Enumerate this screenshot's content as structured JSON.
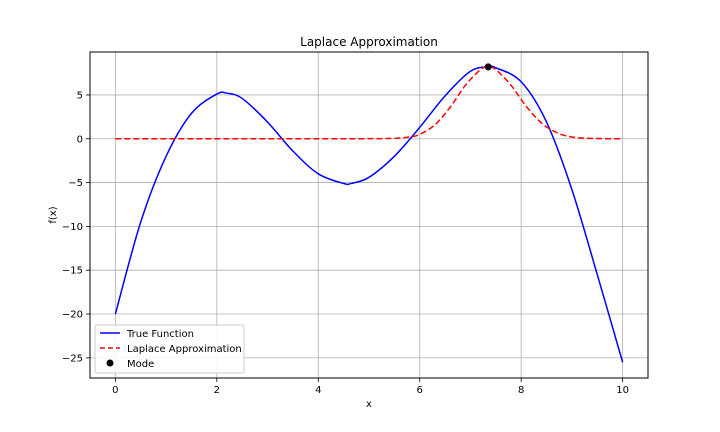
{
  "chart_data": {
    "type": "line",
    "title": "Laplace Approximation",
    "xlabel": "x",
    "ylabel": "f(x)",
    "xlim": [
      -0.5,
      10.5
    ],
    "ylim": [
      -27.3,
      9.9
    ],
    "grid": true,
    "legend_position": "bottom-left",
    "x_ticks": [
      0,
      2,
      4,
      6,
      8,
      10
    ],
    "x_tick_labels": [
      "0",
      "2",
      "4",
      "6",
      "8",
      "10"
    ],
    "y_ticks": [
      5,
      0,
      -5,
      -10,
      -15,
      -20,
      -25
    ],
    "y_tick_labels": [
      "5",
      "0",
      "−5",
      "−10",
      "−15",
      "−20",
      "−25"
    ],
    "series": [
      {
        "name": "True Function",
        "style": "solid",
        "color": "#0000ff",
        "x": [
          0,
          0.5,
          1.0,
          1.5,
          2.0,
          2.2,
          2.5,
          3.0,
          3.5,
          4.0,
          4.5,
          4.65,
          5.0,
          5.5,
          6.0,
          6.5,
          7.0,
          7.35,
          7.5,
          8.0,
          8.5,
          9.0,
          9.5,
          10.0
        ],
        "values": [
          -20.0,
          -9.5,
          -2.0,
          2.9,
          5.1,
          5.2,
          4.6,
          1.9,
          -1.4,
          -4.0,
          -5.1,
          -5.1,
          -4.4,
          -2.0,
          1.3,
          4.9,
          7.7,
          8.2,
          8.1,
          6.5,
          1.9,
          -5.8,
          -15.5,
          -25.5
        ]
      },
      {
        "name": "Laplace Approximation",
        "style": "dashed",
        "color": "#ff0000",
        "x": [
          0,
          1,
          2,
          3,
          4,
          5,
          5.5,
          5.8,
          6.0,
          6.3,
          6.6,
          6.9,
          7.2,
          7.35,
          7.5,
          7.8,
          8.1,
          8.4,
          8.7,
          9.0,
          9.3,
          9.6,
          10.0
        ],
        "values": [
          0,
          0,
          0,
          0,
          0,
          0.01,
          0.05,
          0.2,
          0.5,
          1.6,
          3.6,
          6.1,
          7.9,
          8.2,
          7.9,
          6.1,
          3.7,
          1.8,
          0.7,
          0.2,
          0.06,
          0.01,
          0
        ]
      },
      {
        "name": "Mode",
        "style": "marker",
        "color": "#000000",
        "x": [
          7.35
        ],
        "values": [
          8.2
        ]
      }
    ]
  }
}
